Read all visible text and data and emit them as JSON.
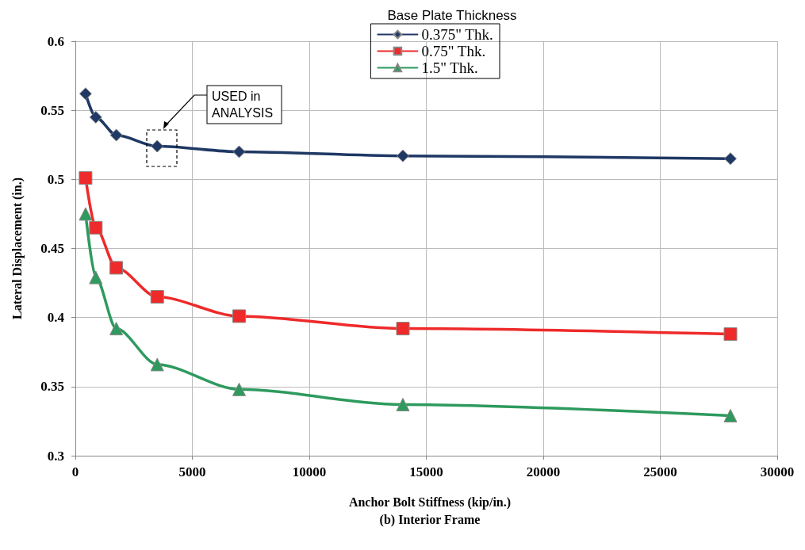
{
  "chart_data": {
    "type": "line",
    "legend_title": "Base Plate Thickness",
    "xlabel": "Anchor Bolt Stiffness (kip/in.)",
    "ylabel": "Lateral Displacement (in.)",
    "x": [
      437.5,
      875,
      1750,
      3500,
      7000,
      14000,
      28000
    ],
    "series": [
      {
        "name": "0.375\" Thk.",
        "color": "#1f3864",
        "marker": "diamond",
        "values": [
          0.562,
          0.545,
          0.532,
          0.524,
          0.52,
          0.517,
          0.515
        ]
      },
      {
        "name": "0.75\" Thk.",
        "color": "#ee2a2a",
        "marker": "square",
        "values": [
          0.501,
          0.465,
          0.436,
          0.415,
          0.401,
          0.392,
          0.388
        ]
      },
      {
        "name": "1.5\" Thk.",
        "color": "#2e9a5e",
        "marker": "triangle",
        "values": [
          0.475,
          0.429,
          0.392,
          0.366,
          0.348,
          0.337,
          0.329
        ]
      }
    ],
    "annotations": [
      "USED in\nANALYSIS",
      "(b) Interior Frame"
    ],
    "xlim": [
      0,
      30000
    ],
    "xticks": [
      0,
      5000,
      10000,
      15000,
      20000,
      25000,
      30000
    ],
    "ylim": [
      0.3,
      0.6
    ],
    "yticks": [
      0.3,
      0.35,
      0.4,
      0.45,
      0.5,
      0.55,
      0.6
    ],
    "grid": true,
    "legend": "top right",
    "line_style": "solid"
  }
}
